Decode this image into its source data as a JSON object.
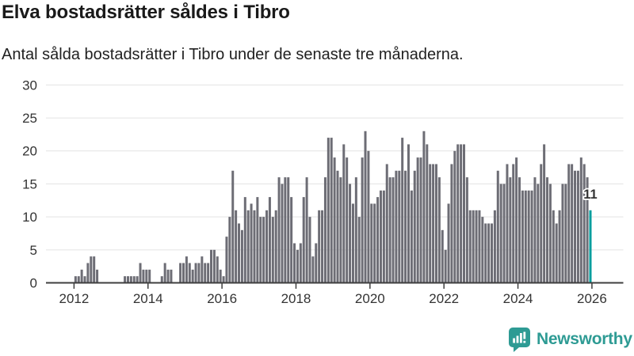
{
  "title": "Elva bostadsrätter såldes i Tibro",
  "subtitle": "Antal sålda bostadsrätter i Tibro under de senaste tre månaderna.",
  "colors": {
    "bar": "#6d6d75",
    "highlight": "#009e9e",
    "grid": "#e3e3e3",
    "axis": "#3f3f3f",
    "label_text": "#333333",
    "brand_teal": "#2e9b94"
  },
  "chart_data": {
    "type": "bar",
    "title": "Elva bostadsrätter såldes i Tibro",
    "subtitle": "Antal sålda bostadsrätter i Tibro under de senaste tre månaderna.",
    "xlabel": "",
    "ylabel": "",
    "frequency": "monthly",
    "start_year": 2012,
    "start_month": 1,
    "ylim": [
      0,
      30
    ],
    "y_ticks": [
      0,
      5,
      10,
      15,
      20,
      25,
      30
    ],
    "x_tick_years": [
      2012,
      2014,
      2016,
      2018,
      2020,
      2022,
      2024,
      2026
    ],
    "x_tick_labels": [
      "2012",
      "2014",
      "2016",
      "2018",
      "2020",
      "2022",
      "2024",
      "2026"
    ],
    "grid": "horizontal",
    "legend": "none",
    "highlight_last": true,
    "last_value": 11,
    "last_value_label": "11",
    "values": [
      1,
      1,
      2,
      1,
      3,
      4,
      4,
      2,
      0,
      0,
      0,
      0,
      0,
      0,
      0,
      0,
      1,
      1,
      1,
      1,
      1,
      3,
      2,
      2,
      2,
      0,
      0,
      0,
      1,
      3,
      2,
      2,
      0,
      0,
      3,
      3,
      4,
      3,
      2,
      3,
      3,
      4,
      3,
      3,
      5,
      5,
      4,
      2,
      1,
      7,
      10,
      17,
      11,
      9,
      8,
      13,
      11,
      12,
      11,
      13,
      10,
      10,
      11,
      13,
      10,
      11,
      16,
      15,
      16,
      16,
      13,
      6,
      5,
      6,
      13,
      16,
      10,
      4,
      6,
      11,
      11,
      16,
      22,
      22,
      19,
      17,
      16,
      21,
      19,
      15,
      12,
      16,
      10,
      19,
      23,
      20,
      12,
      12,
      13,
      14,
      14,
      18,
      16,
      16,
      17,
      17,
      22,
      17,
      21,
      14,
      17,
      19,
      19,
      23,
      21,
      18,
      18,
      18,
      16,
      8,
      5,
      12,
      18,
      20,
      21,
      21,
      21,
      16,
      11,
      11,
      11,
      11,
      10,
      9,
      9,
      9,
      11,
      17,
      15,
      15,
      18,
      16,
      18,
      19,
      16,
      14,
      14,
      14,
      14,
      16,
      15,
      18,
      21,
      16,
      15,
      11,
      9,
      11,
      15,
      15,
      18,
      18,
      17,
      17,
      19,
      18,
      16,
      11
    ]
  },
  "footer": {
    "brand": "Newsworthy",
    "logo_icon": "bar-chart-speech-bubble-icon"
  }
}
